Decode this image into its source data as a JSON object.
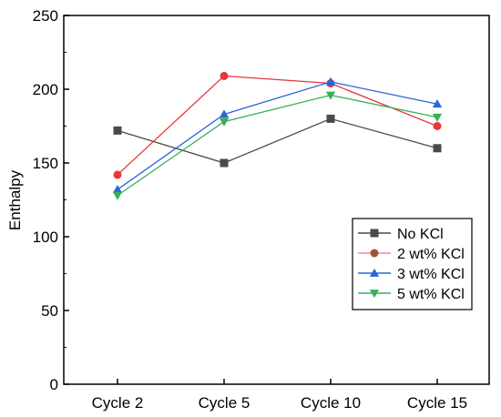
{
  "chart_data": {
    "type": "line",
    "title": "",
    "xlabel": "",
    "ylabel": "Enthalpy",
    "categories": [
      "Cycle 2",
      "Cycle 5",
      "Cycle 10",
      "Cycle 15"
    ],
    "ylim": [
      0,
      250
    ],
    "yticks": [
      "0",
      "50",
      "100",
      "150",
      "200",
      "250"
    ],
    "grid": false,
    "legend_position": "right",
    "series": [
      {
        "name": "No KCl",
        "values": [
          172,
          150,
          180,
          160
        ],
        "color": "#4a4a4a",
        "marker": "square"
      },
      {
        "name": "2 wt% KCl",
        "values": [
          142,
          209,
          204,
          175
        ],
        "color": "#e8363a",
        "marker": "circle",
        "legend_marker_color": "#a0522d",
        "legend_line_color": "#e88aa0"
      },
      {
        "name": "3 wt% KCl",
        "values": [
          132,
          183,
          205,
          190
        ],
        "color": "#2a65d8",
        "marker": "triangle-up"
      },
      {
        "name": "5 wt% KCl",
        "values": [
          128,
          178,
          196,
          181
        ],
        "color": "#3aaf5a",
        "marker": "triangle-down"
      }
    ]
  }
}
